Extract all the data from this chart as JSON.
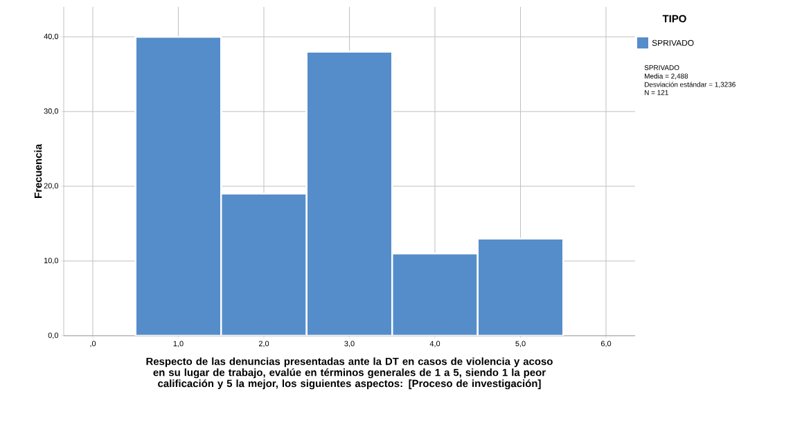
{
  "chart_data": {
    "type": "histogram",
    "xlabel": "Respecto de las denuncias presentadas ante la DT en casos de violencia y acoso en su lugar de trabajo, evalúe en términos generales de 1 a 5, siendo 1 la peor calificación y 5 la mejor, los siguientes aspectos: [Proceso de investigación]",
    "ylabel": "Frecuencia",
    "legend_title": "TIPO",
    "bins": [
      0.5,
      1.5,
      2.5,
      3.5,
      4.5,
      5.5
    ],
    "series": [
      {
        "name": "SPRIVADO",
        "color": "#558dca",
        "values": [
          40,
          19,
          38,
          11,
          13
        ]
      }
    ],
    "xlim": [
      -0.34,
      6.34
    ],
    "xticks": [
      {
        "value": 0,
        "label": ",0"
      },
      {
        "value": 1,
        "label": "1,0"
      },
      {
        "value": 2,
        "label": "2,0"
      },
      {
        "value": 3,
        "label": "3,0"
      },
      {
        "value": 4,
        "label": "4,0"
      },
      {
        "value": 5,
        "label": "5,0"
      },
      {
        "value": 6,
        "label": "6,0"
      }
    ],
    "ylim": [
      0,
      44
    ],
    "yticks": [
      {
        "value": 0,
        "label": "0,0"
      },
      {
        "value": 10,
        "label": "10,0"
      },
      {
        "value": 20,
        "label": "20,0"
      },
      {
        "value": 30,
        "label": "30,0"
      },
      {
        "value": 40,
        "label": "40,0"
      }
    ],
    "grid": true,
    "legend": "top right",
    "annotations": [
      "SPRIVADO",
      "Media = 2,488",
      "Desviación estándar = 1,3236",
      "N = 121"
    ]
  }
}
